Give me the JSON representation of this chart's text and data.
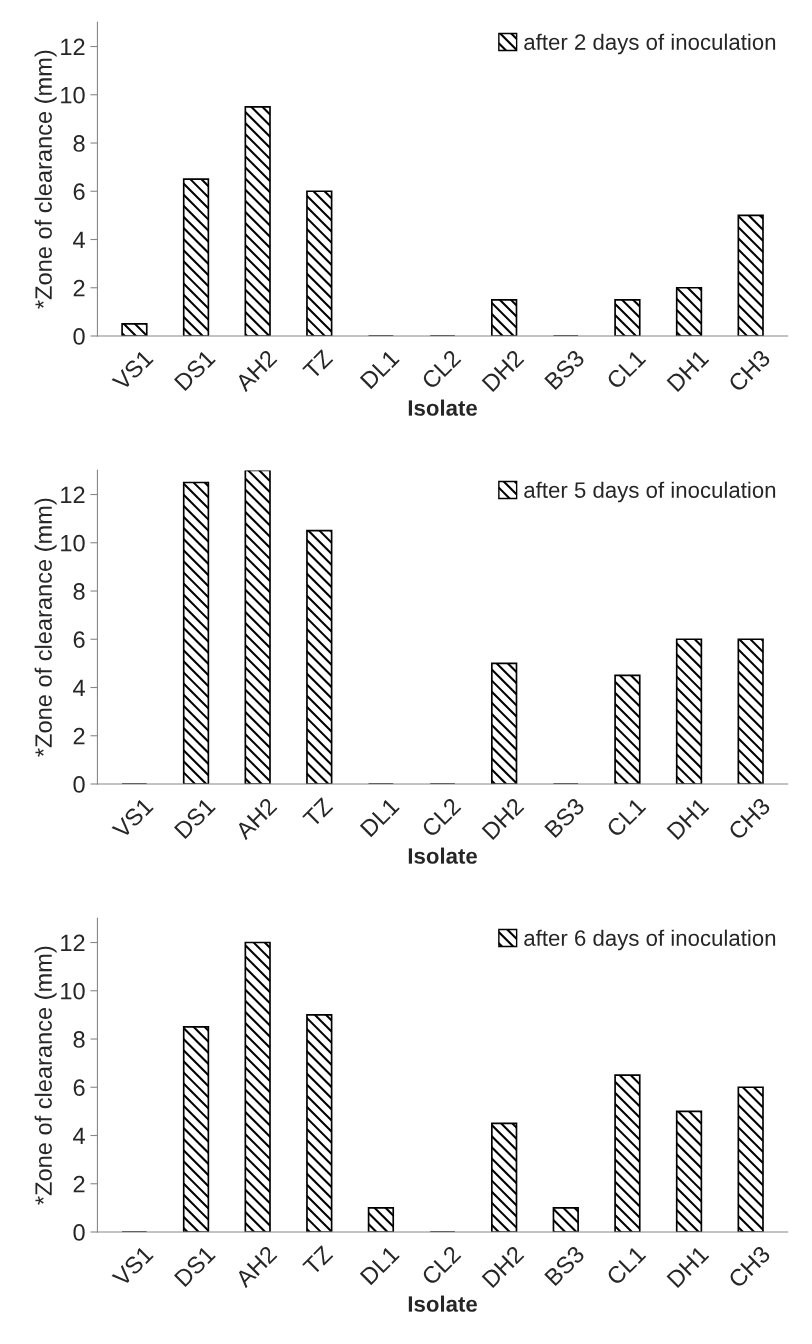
{
  "chart_data": [
    {
      "type": "bar",
      "categories": [
        "VS1",
        "DS1",
        "AH2",
        "TZ",
        "DL1",
        "CL2",
        "DH2",
        "BS3",
        "CL1",
        "DH1",
        "CH3"
      ],
      "series": [
        {
          "name": "after 2 days of inoculation",
          "color": "#000000",
          "values": [
            0.5,
            6.5,
            9.5,
            6,
            0,
            0,
            1.5,
            0,
            1.5,
            2,
            5
          ]
        }
      ],
      "xlabel": "Isolate",
      "ylabel": "*Zone of clearance (mm)",
      "ylim": [
        0,
        13
      ],
      "yticks": [
        0,
        2,
        4,
        6,
        8,
        10,
        12
      ],
      "legend": "top right",
      "grid": false
    },
    {
      "type": "bar",
      "categories": [
        "VS1",
        "DS1",
        "AH2",
        "TZ",
        "DL1",
        "CL2",
        "DH2",
        "BS3",
        "CL1",
        "DH1",
        "CH3"
      ],
      "series": [
        {
          "name": "after 5 days of inoculation",
          "color": "#000000",
          "values": [
            0,
            12.5,
            13,
            10.5,
            0,
            0,
            5,
            0,
            4.5,
            6,
            6
          ]
        }
      ],
      "xlabel": "Isolate",
      "ylabel": "*Zone of clearance (mm)",
      "ylim": [
        0,
        13
      ],
      "yticks": [
        0,
        2,
        4,
        6,
        8,
        10,
        12
      ],
      "legend": "top right",
      "grid": false
    },
    {
      "type": "bar",
      "categories": [
        "VS1",
        "DS1",
        "AH2",
        "TZ",
        "DL1",
        "CL2",
        "DH2",
        "BS3",
        "CL1",
        "DH1",
        "CH3"
      ],
      "series": [
        {
          "name": "after 6 days of inoculation",
          "color": "#000000",
          "values": [
            0,
            8.5,
            12,
            9,
            1,
            0,
            4.5,
            1,
            6.5,
            5,
            6
          ]
        }
      ],
      "xlabel": "Isolate",
      "ylabel": "*Zone of clearance (mm)",
      "ylim": [
        0,
        13
      ],
      "yticks": [
        0,
        2,
        4,
        6,
        8,
        10,
        12
      ],
      "legend": "top right",
      "grid": false
    }
  ]
}
